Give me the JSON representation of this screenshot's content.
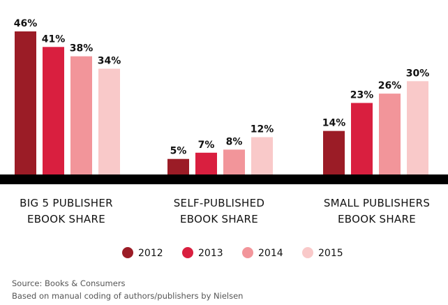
{
  "chart_data": {
    "type": "bar",
    "title": "",
    "xlabel": "",
    "ylabel": "",
    "ylim": [
      0,
      46
    ],
    "value_suffix": "%",
    "categories": [
      [
        "BIG 5 PUBLISHER",
        "EBOOK SHARE"
      ],
      [
        "SELF-PUBLISHED",
        "EBOOK SHARE"
      ],
      [
        "SMALL PUBLISHERS",
        "EBOOK SHARE"
      ]
    ],
    "series": [
      {
        "name": "2012",
        "color": "#9b1c26",
        "values": [
          46,
          5,
          14
        ]
      },
      {
        "name": "2013",
        "color": "#d91f3f",
        "values": [
          41,
          7,
          23
        ]
      },
      {
        "name": "2014",
        "color": "#f2959a",
        "values": [
          38,
          8,
          26
        ]
      },
      {
        "name": "2015",
        "color": "#f9c9c9",
        "values": [
          34,
          12,
          30
        ]
      }
    ],
    "legend_position": "bottom-center",
    "grid": false
  },
  "footnotes": {
    "source": "Source: Books & Consumers",
    "method": "Based on manual coding of authors/publishers by Nielsen"
  }
}
